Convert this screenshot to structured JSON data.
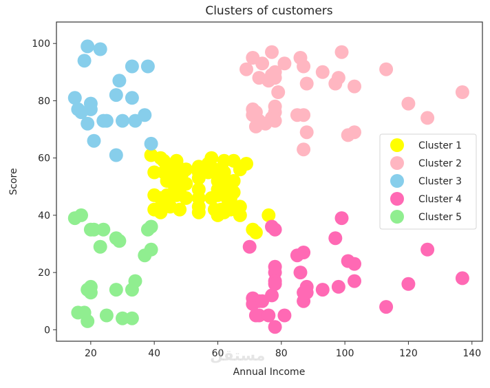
{
  "chart_data": {
    "type": "scatter",
    "title": "Clusters of customers",
    "xlabel": "Annual Income",
    "ylabel": "Score",
    "xlim": [
      9.2,
      143.3
    ],
    "ylim": [
      -4,
      107.5
    ],
    "xticks": [
      20,
      40,
      60,
      80,
      100,
      120,
      140
    ],
    "yticks": [
      0,
      20,
      40,
      60,
      80,
      100
    ],
    "grid": false,
    "legend_position": "center right",
    "marker_size": 10,
    "series": [
      {
        "name": "Cluster 1",
        "color": "#ffff00",
        "points": [
          [
            39,
            61
          ],
          [
            42,
            60
          ],
          [
            43,
            59
          ],
          [
            43,
            55
          ],
          [
            44,
            52
          ],
          [
            44,
            47
          ],
          [
            45,
            55
          ],
          [
            46,
            51
          ],
          [
            46,
            56
          ],
          [
            47,
            59
          ],
          [
            47,
            58
          ],
          [
            47,
            47
          ],
          [
            48,
            49
          ],
          [
            48,
            54
          ],
          [
            48,
            52
          ],
          [
            48,
            42
          ],
          [
            49,
            55
          ],
          [
            50,
            56
          ],
          [
            50,
            51
          ],
          [
            50,
            46
          ],
          [
            40,
            55
          ],
          [
            40,
            47
          ],
          [
            40,
            42
          ],
          [
            42,
            46
          ],
          [
            42,
            41
          ],
          [
            54,
            53
          ],
          [
            54,
            57
          ],
          [
            54,
            49
          ],
          [
            54,
            46
          ],
          [
            54,
            43
          ],
          [
            54,
            41
          ],
          [
            54,
            55
          ],
          [
            57,
            58
          ],
          [
            57,
            55
          ],
          [
            58,
            60
          ],
          [
            58,
            46
          ],
          [
            59,
            56
          ],
          [
            59,
            42
          ],
          [
            60,
            52
          ],
          [
            60,
            49
          ],
          [
            60,
            47
          ],
          [
            60,
            41
          ],
          [
            60,
            40
          ],
          [
            61,
            50
          ],
          [
            61,
            42
          ],
          [
            62,
            59
          ],
          [
            62,
            55
          ],
          [
            62,
            48
          ],
          [
            62,
            41
          ],
          [
            63,
            52
          ],
          [
            63,
            46
          ],
          [
            63,
            43
          ],
          [
            64,
            42
          ],
          [
            65,
            59
          ],
          [
            65,
            48
          ],
          [
            65,
            52
          ],
          [
            67,
            56
          ],
          [
            67,
            43
          ],
          [
            67,
            40
          ],
          [
            69,
            58
          ],
          [
            71,
            35
          ],
          [
            72,
            34
          ],
          [
            76,
            40
          ],
          [
            43,
            45
          ],
          [
            45,
            43
          ],
          [
            64,
            46
          ]
        ]
      },
      {
        "name": "Cluster 2",
        "color": "#ffb6c1",
        "points": [
          [
            69,
            91
          ],
          [
            71,
            95
          ],
          [
            71,
            75
          ],
          [
            71,
            77
          ],
          [
            72,
            71
          ],
          [
            73,
            88
          ],
          [
            73,
            73
          ],
          [
            74,
            93
          ],
          [
            75,
            72
          ],
          [
            76,
            87
          ],
          [
            77,
            97
          ],
          [
            77,
            74
          ],
          [
            78,
            90
          ],
          [
            78,
            88
          ],
          [
            78,
            76
          ],
          [
            78,
            73
          ],
          [
            78,
            78
          ],
          [
            79,
            83
          ],
          [
            81,
            93
          ],
          [
            85,
            75
          ],
          [
            86,
            95
          ],
          [
            87,
            92
          ],
          [
            87,
            75
          ],
          [
            87,
            63
          ],
          [
            88,
            86
          ],
          [
            88,
            69
          ],
          [
            93,
            90
          ],
          [
            97,
            86
          ],
          [
            98,
            88
          ],
          [
            99,
            97
          ],
          [
            101,
            68
          ],
          [
            103,
            85
          ],
          [
            103,
            69
          ],
          [
            113,
            91
          ],
          [
            120,
            79
          ],
          [
            126,
            74
          ],
          [
            137,
            83
          ],
          [
            77,
            89
          ],
          [
            72,
            76
          ]
        ]
      },
      {
        "name": "Cluster 3",
        "color": "#87ceeb",
        "points": [
          [
            19,
            99
          ],
          [
            23,
            98
          ],
          [
            18,
            94
          ],
          [
            33,
            92
          ],
          [
            38,
            92
          ],
          [
            29,
            87
          ],
          [
            15,
            81
          ],
          [
            28,
            82
          ],
          [
            33,
            81
          ],
          [
            20,
            79
          ],
          [
            16,
            77
          ],
          [
            20,
            77
          ],
          [
            17,
            76
          ],
          [
            19,
            72
          ],
          [
            24,
            73
          ],
          [
            25,
            73
          ],
          [
            30,
            73
          ],
          [
            34,
            73
          ],
          [
            37,
            75
          ],
          [
            21,
            66
          ],
          [
            39,
            65
          ],
          [
            28,
            61
          ]
        ]
      },
      {
        "name": "Cluster 4",
        "color": "#ff69b4",
        "points": [
          [
            70,
            29
          ],
          [
            71,
            11
          ],
          [
            71,
            9
          ],
          [
            72,
            5
          ],
          [
            73,
            10
          ],
          [
            73,
            5
          ],
          [
            74,
            10
          ],
          [
            76,
            5
          ],
          [
            77,
            12
          ],
          [
            77,
            36
          ],
          [
            78,
            35
          ],
          [
            78,
            22
          ],
          [
            78,
            20
          ],
          [
            78,
            17
          ],
          [
            78,
            16
          ],
          [
            78,
            1
          ],
          [
            81,
            5
          ],
          [
            85,
            26
          ],
          [
            86,
            20
          ],
          [
            87,
            27
          ],
          [
            87,
            13
          ],
          [
            87,
            10
          ],
          [
            88,
            15
          ],
          [
            88,
            13
          ],
          [
            93,
            14
          ],
          [
            97,
            32
          ],
          [
            98,
            15
          ],
          [
            99,
            39
          ],
          [
            101,
            24
          ],
          [
            103,
            23
          ],
          [
            103,
            17
          ],
          [
            113,
            8
          ],
          [
            120,
            16
          ],
          [
            126,
            28
          ],
          [
            137,
            18
          ]
        ]
      },
      {
        "name": "Cluster 5",
        "color": "#90ee90",
        "points": [
          [
            15,
            39
          ],
          [
            17,
            40
          ],
          [
            19,
            14
          ],
          [
            20,
            15
          ],
          [
            20,
            13
          ],
          [
            20,
            35
          ],
          [
            21,
            35
          ],
          [
            23,
            29
          ],
          [
            24,
            35
          ],
          [
            28,
            32
          ],
          [
            29,
            31
          ],
          [
            28,
            14
          ],
          [
            33,
            14
          ],
          [
            34,
            17
          ],
          [
            38,
            35
          ],
          [
            39,
            36
          ],
          [
            37,
            26
          ],
          [
            39,
            28
          ],
          [
            16,
            6
          ],
          [
            18,
            6
          ],
          [
            19,
            3
          ],
          [
            25,
            5
          ],
          [
            30,
            4
          ],
          [
            33,
            4
          ]
        ]
      }
    ]
  },
  "watermark": "مستقل"
}
